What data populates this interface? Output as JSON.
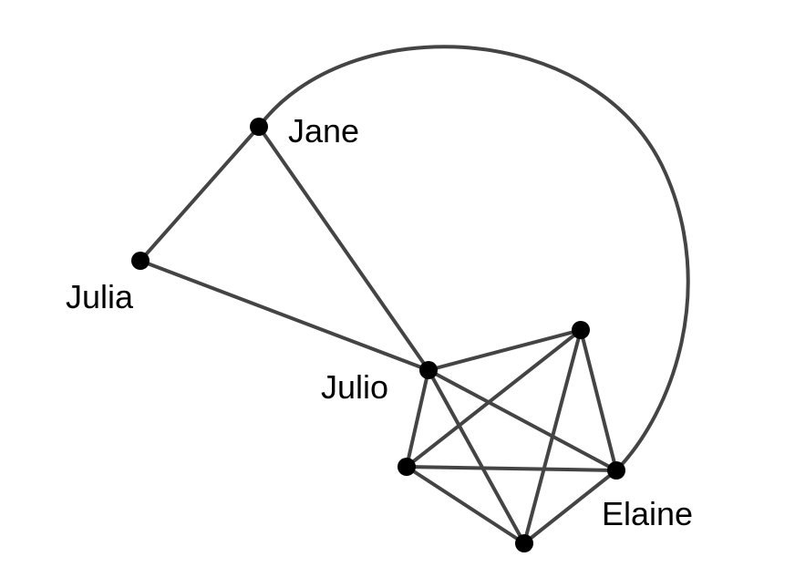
{
  "colors": {
    "edge": "#444444",
    "node": "#000000",
    "background": "#ffffff"
  },
  "graph": {
    "nodes": [
      {
        "id": "jane",
        "label": "Jane"
      },
      {
        "id": "julia",
        "label": "Julia"
      },
      {
        "id": "julio",
        "label": "Julio"
      },
      {
        "id": "n4",
        "label": ""
      },
      {
        "id": "n5",
        "label": ""
      },
      {
        "id": "n6",
        "label": ""
      },
      {
        "id": "elaine",
        "label": "Elaine"
      }
    ],
    "edges": [
      {
        "from": "jane",
        "to": "julia"
      },
      {
        "from": "jane",
        "to": "julio"
      },
      {
        "from": "julia",
        "to": "julio"
      },
      {
        "from": "julio",
        "to": "n4"
      },
      {
        "from": "julio",
        "to": "n5"
      },
      {
        "from": "julio",
        "to": "n6"
      },
      {
        "from": "julio",
        "to": "elaine"
      },
      {
        "from": "n4",
        "to": "n5"
      },
      {
        "from": "n4",
        "to": "n6"
      },
      {
        "from": "n4",
        "to": "elaine"
      },
      {
        "from": "n5",
        "to": "n6"
      },
      {
        "from": "n5",
        "to": "elaine"
      },
      {
        "from": "n6",
        "to": "elaine"
      },
      {
        "from": "jane",
        "to": "elaine",
        "curved": true
      }
    ]
  }
}
